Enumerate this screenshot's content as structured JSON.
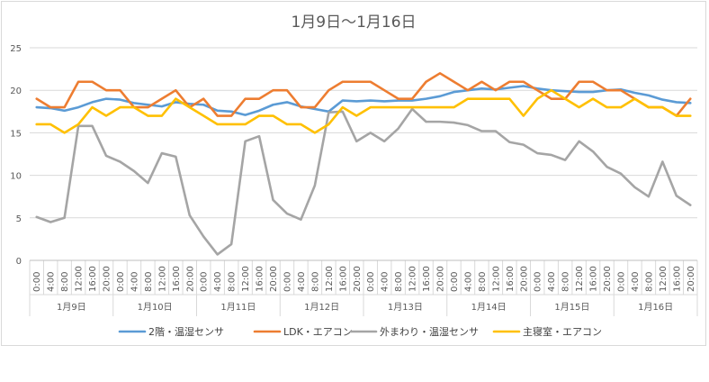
{
  "chart_data": {
    "type": "line",
    "title": "1月9日～1月16日",
    "xlabel": "",
    "ylabel": "",
    "ylim": [
      0,
      25
    ],
    "yticks": [
      0,
      5,
      10,
      15,
      20,
      25
    ],
    "grid": true,
    "legend_position": "bottom",
    "x_time_labels": [
      "0:00",
      "4:00",
      "8:00",
      "12:00",
      "16:00",
      "20:00",
      "0:00",
      "4:00",
      "8:00",
      "12:00",
      "16:00",
      "20:00",
      "0:00",
      "4:00",
      "8:00",
      "12:00",
      "16:00",
      "20:00",
      "0:00",
      "4:00",
      "8:00",
      "12:00",
      "16:00",
      "20:00",
      "0:00",
      "4:00",
      "8:00",
      "12:00",
      "16:00",
      "20:00",
      "0:00",
      "4:00",
      "8:00",
      "12:00",
      "16:00",
      "20:00",
      "0:00",
      "4:00",
      "8:00",
      "12:00",
      "16:00",
      "20:00",
      "0:00",
      "4:00",
      "8:00",
      "12:00",
      "16:00",
      "20:00"
    ],
    "x_day_groups": [
      "1月9日",
      "1月10日",
      "1月11日",
      "1月12日",
      "1月13日",
      "1月14日",
      "1月15日",
      "1月16日"
    ],
    "series": [
      {
        "name": "2階・温湿センサ",
        "color": "#5b9bd5",
        "values": [
          18,
          17.9,
          17.6,
          18,
          18.6,
          19,
          18.9,
          18.5,
          18.3,
          18.1,
          18.6,
          18.4,
          18.3,
          17.6,
          17.5,
          17.1,
          17.6,
          18.3,
          18.6,
          18.1,
          17.8,
          17.5,
          18.8,
          18.7,
          18.8,
          18.7,
          18.8,
          18.8,
          19,
          19.3,
          19.8,
          20,
          20.2,
          20.1,
          20.3,
          20.5,
          20.2,
          20,
          19.9,
          19.8,
          19.8,
          20,
          20.1,
          19.7,
          19.4,
          18.9,
          18.6,
          18.5
        ]
      },
      {
        "name": "LDK・エアコン",
        "color": "#ed7d31",
        "values": [
          19,
          18,
          18,
          21,
          21,
          20,
          20,
          18,
          18,
          19,
          20,
          18,
          19,
          17,
          17,
          19,
          19,
          20,
          20,
          18,
          18,
          20,
          21,
          21,
          21,
          20,
          19,
          19,
          21,
          22,
          21,
          20,
          21,
          20,
          21,
          21,
          20,
          19,
          19,
          21,
          21,
          20,
          20,
          19,
          18,
          18,
          17,
          19
        ]
      },
      {
        "name": "外まわり・温湿センサ",
        "color": "#a5a5a5",
        "values": [
          5.1,
          4.5,
          5,
          15.8,
          15.8,
          12.3,
          11.6,
          10.5,
          9.1,
          12.6,
          12.2,
          5.3,
          2.8,
          0.7,
          1.9,
          14,
          14.6,
          7.1,
          5.5,
          4.8,
          8.8,
          17.4,
          17.5,
          14,
          15,
          14,
          15.5,
          17.8,
          16.3,
          16.3,
          16.2,
          15.9,
          15.2,
          15.2,
          13.9,
          13.6,
          12.6,
          12.4,
          11.8,
          14,
          12.8,
          11,
          10.2,
          8.6,
          7.5,
          11.6,
          7.6,
          6.5
        ]
      },
      {
        "name": "主寝室・エアコン",
        "color": "#ffc000",
        "values": [
          16,
          16,
          15,
          16,
          18,
          17,
          18,
          18,
          17,
          17,
          19,
          18,
          17,
          16,
          16,
          16,
          17,
          17,
          16,
          16,
          15,
          16,
          18,
          17,
          18,
          18,
          18,
          18,
          18,
          18,
          18,
          19,
          19,
          19,
          19,
          17,
          19,
          20,
          19,
          18,
          19,
          18,
          18,
          19,
          18,
          18,
          17,
          17
        ]
      }
    ]
  }
}
